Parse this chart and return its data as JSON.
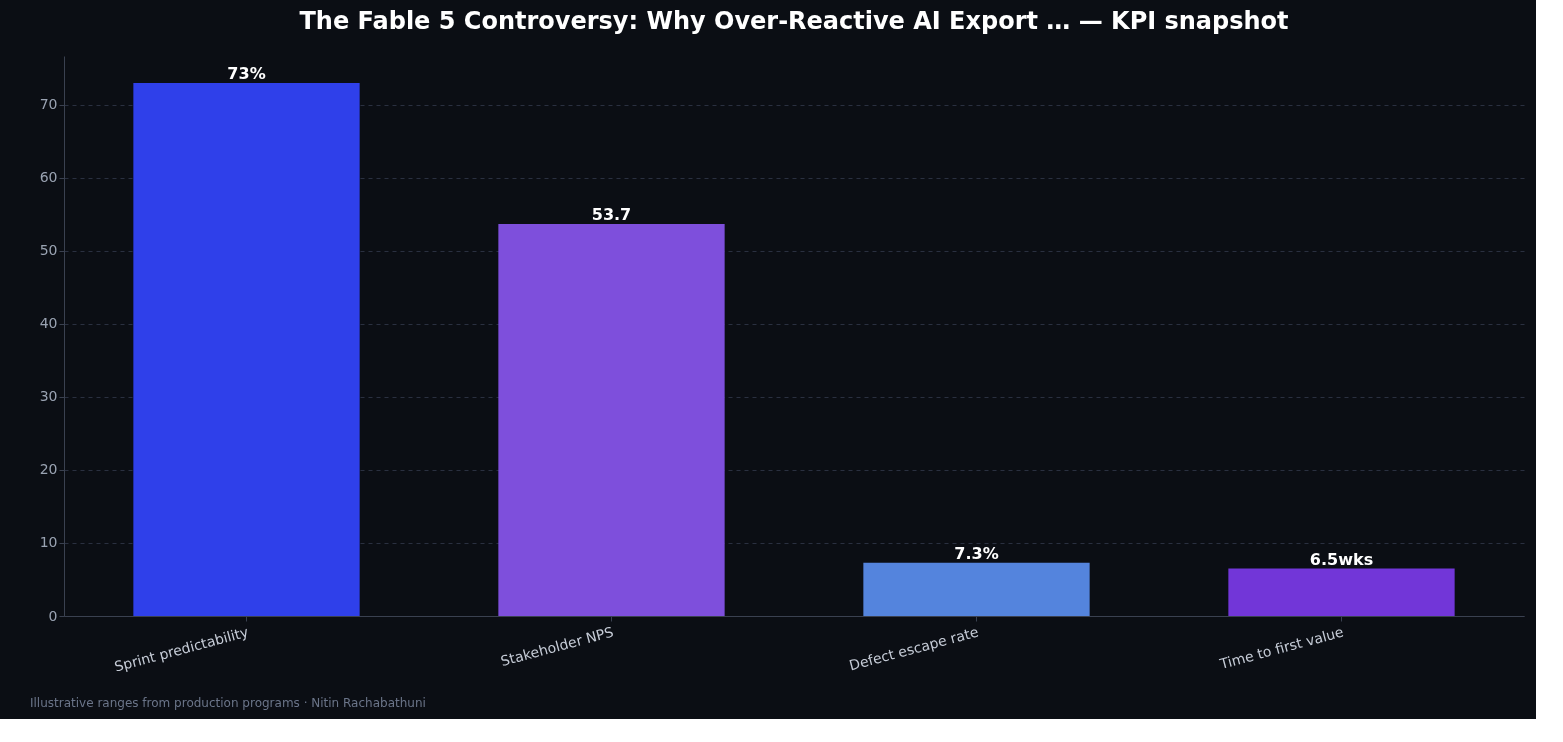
{
  "chart_data": {
    "type": "bar",
    "title": "The Fable 5 Controversy: Why Over-Reactive AI Export … — KPI snapshot",
    "categories": [
      "Sprint predictability",
      "Stakeholder NPS",
      "Defect escape rate",
      "Time to first value"
    ],
    "values": [
      73,
      53.7,
      7.3,
      6.5
    ],
    "colors": [
      "#2f40ea",
      "#7e4fdc",
      "#5484dd",
      "#7236d8"
    ],
    "value_labels": [
      "73%",
      "53.7",
      "7.3%",
      "6.5wks"
    ],
    "ylim": [
      0,
      76.7
    ],
    "yticks": [
      0,
      10,
      20,
      30,
      40,
      50,
      60,
      70
    ],
    "grid": "y",
    "annotations": [
      "Illustrative ranges from production programs · Nitin Rachabathuni"
    ]
  }
}
